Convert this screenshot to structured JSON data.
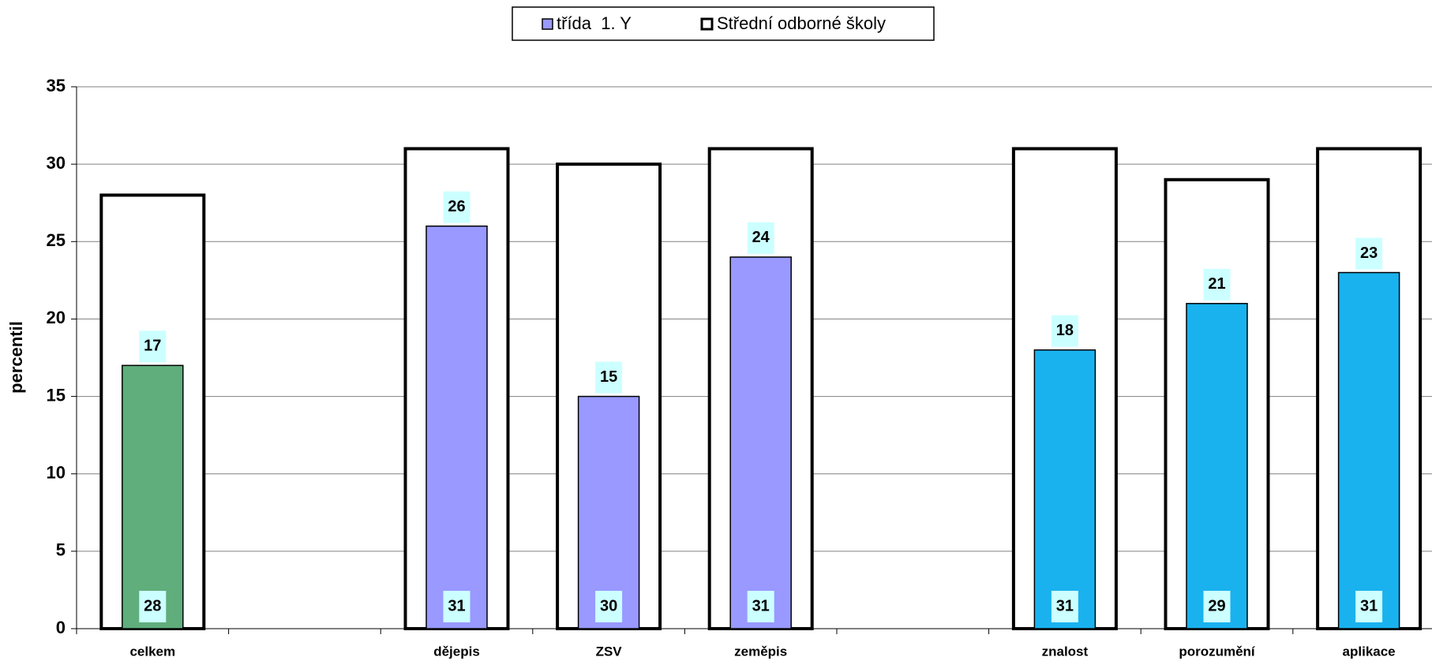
{
  "chart_data": {
    "type": "bar",
    "categories": [
      "celkem",
      null,
      "dějepis",
      "ZSV",
      "zeměpis",
      null,
      "znalost",
      "porozumění",
      "aplikace"
    ],
    "series": [
      {
        "name": "třída  1. Y",
        "color": "#9999ff",
        "colors": [
          "#5fae7c",
          null,
          "#9999ff",
          "#9999ff",
          "#9999ff",
          null,
          "#19b2ef",
          "#19b2ef",
          "#19b2ef"
        ],
        "values": [
          17,
          null,
          26,
          15,
          24,
          null,
          18,
          21,
          23
        ]
      },
      {
        "name": "Střední odborné školy",
        "color": "#ffffff",
        "values": [
          28,
          null,
          31,
          30,
          31,
          null,
          31,
          29,
          31
        ]
      }
    ],
    "y_label": "percentil",
    "ylim": [
      0,
      35
    ],
    "yticks": [
      0,
      5,
      10,
      15,
      20,
      25,
      30,
      35
    ],
    "grid": true,
    "legend": "top"
  }
}
